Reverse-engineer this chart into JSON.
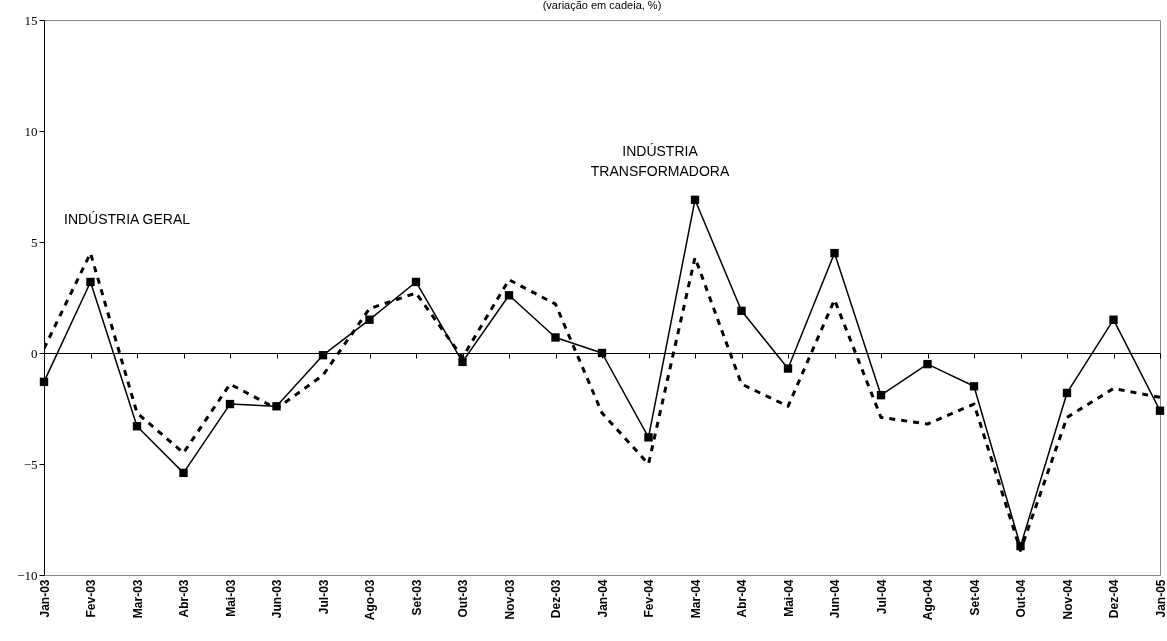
{
  "chart_data": {
    "type": "line",
    "title": "(variação em cadeia, %)",
    "categories": [
      "Jan-03",
      "Fev-03",
      "Mar-03",
      "Abr-03",
      "Mai-03",
      "Jun-03",
      "Jul-03",
      "Ago-03",
      "Set-03",
      "Out-03",
      "Nov-03",
      "Dez-03",
      "Jan-04",
      "Fev-04",
      "Mar-04",
      "Abr-04",
      "Mai-04",
      "Jun-04",
      "Jul-04",
      "Ago-04",
      "Set-04",
      "Out-04",
      "Nov-04",
      "Dez-04",
      "Jan-05"
    ],
    "series": [
      {
        "name": "INDÚSTRIA GERAL",
        "color": "#000000",
        "line_style": "dashed",
        "marker": "none",
        "values": [
          0.2,
          4.5,
          -2.7,
          -4.5,
          -1.4,
          -2.5,
          -1.0,
          2.0,
          2.7,
          -0.2,
          3.3,
          2.2,
          -2.7,
          -5.0,
          4.3,
          -1.4,
          -2.4,
          2.4,
          -2.9,
          -3.2,
          -2.3,
          -8.9,
          -2.9,
          -1.6,
          -2.0
        ]
      },
      {
        "name": "INDÚSTRIA TRANSFORMADORA",
        "color": "#000000",
        "line_style": "solid",
        "marker": "square",
        "values": [
          -1.3,
          3.2,
          -3.3,
          -5.4,
          -2.3,
          -2.4,
          -0.1,
          1.5,
          3.2,
          -0.4,
          2.6,
          0.7,
          0.0,
          -3.8,
          6.9,
          1.9,
          -0.7,
          4.5,
          -1.9,
          -0.5,
          -1.5,
          -8.7,
          -1.8,
          1.5,
          -2.6
        ]
      }
    ],
    "ylim": [
      -10,
      15
    ],
    "yticks": [
      -10,
      -5,
      0,
      5,
      10,
      15
    ]
  }
}
